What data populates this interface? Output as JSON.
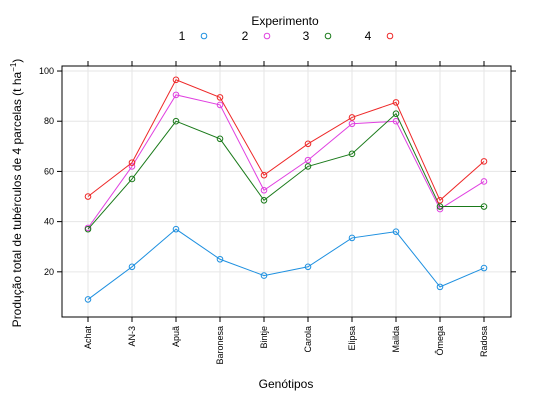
{
  "chart_data": {
    "type": "line",
    "legend_title": "Experimento",
    "legend_placement": "top",
    "xlabel": "Genótipos",
    "ylabel_main": "Produção total de tubérculos de 4 parcelas (t ha",
    "ylabel_exp": "−1",
    "ylabel_close": ")",
    "categories": [
      "Achat",
      "AN-3",
      "Apuã",
      "Baronesa",
      "Bintje",
      "Carola",
      "Elipsa",
      "Mailda",
      "Ômega",
      "Radosa"
    ],
    "ylim": [
      2,
      102
    ],
    "yticks": [
      20,
      40,
      60,
      80,
      100
    ],
    "grid": true,
    "series": [
      {
        "name": "1",
        "color": "#1e90e0",
        "values": [
          9,
          22,
          37,
          25,
          18.5,
          22,
          33.5,
          36,
          14,
          21.5
        ]
      },
      {
        "name": "2",
        "color": "#e040e0",
        "values": [
          37.5,
          62,
          90.5,
          86.5,
          52.5,
          64.5,
          79,
          80,
          45,
          56
        ]
      },
      {
        "name": "3",
        "color": "#1a7a1a",
        "values": [
          37,
          57,
          80,
          73,
          48.5,
          62,
          67,
          83,
          46,
          46
        ]
      },
      {
        "name": "4",
        "color": "#ee2828",
        "values": [
          50,
          63.5,
          96.5,
          89.5,
          58.5,
          71,
          81.5,
          87.5,
          48.5,
          64
        ]
      }
    ]
  }
}
